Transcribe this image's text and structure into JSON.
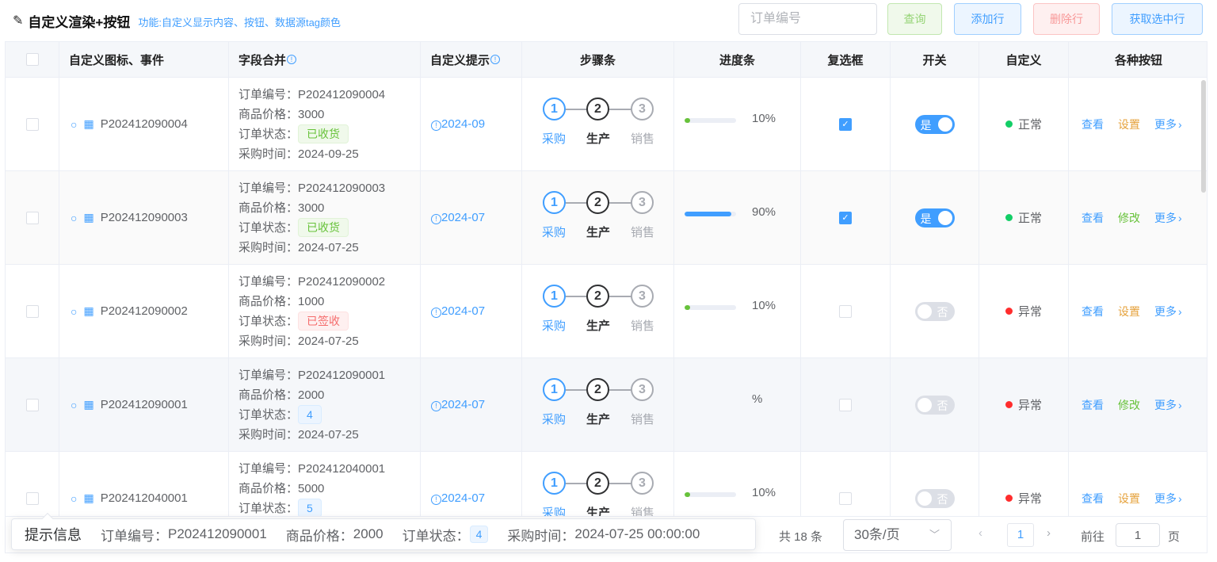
{
  "header": {
    "title": "自定义渲染+按钮",
    "subtitle": "功能:自定义显示内容、按钮、数据源tag颜色"
  },
  "toolbar": {
    "search_placeholder": "订单编号",
    "query": "查询",
    "add_row": "添加行",
    "delete_row": "删除行",
    "get_selected": "获取选中行"
  },
  "columns": [
    "自定义图标、事件",
    "字段合并",
    "自定义提示",
    "步骤条",
    "进度条",
    "复选框",
    "开关",
    "自定义",
    "各种按钮"
  ],
  "labels": {
    "order_no": "订单编号：",
    "price": "商品价格：",
    "status": "订单状态：",
    "time": "采购时间："
  },
  "steps": [
    {
      "num": "1",
      "label": "采购"
    },
    {
      "num": "2",
      "label": "生产"
    },
    {
      "num": "3",
      "label": "销售"
    }
  ],
  "colors": {
    "primary": "#409eff",
    "success": "#67c23a",
    "danger": "#f56c6c",
    "warning": "#e6a23c",
    "normal_dot": "#13ce66",
    "error_dot": "#ff2d2d"
  },
  "rows": [
    {
      "order": "P202412090004",
      "price": "3000",
      "status": {
        "text": "已收货",
        "type": "success"
      },
      "time": "2024-09-25",
      "tip": "2024-09",
      "progress": 10,
      "progress_text": "10%",
      "progress_color": "#67c23a",
      "checked": true,
      "switch_on": true,
      "switch_label": "是",
      "state": "正常",
      "state_type": "normal",
      "actions": [
        "查看",
        "设置",
        "更多"
      ],
      "action2_type": "warning"
    },
    {
      "order": "P202412090003",
      "price": "3000",
      "status": {
        "text": "已收货",
        "type": "success"
      },
      "time": "2024-07-25",
      "tip": "2024-07",
      "progress": 90,
      "progress_text": "90%",
      "progress_color": "#409eff",
      "checked": true,
      "switch_on": true,
      "switch_label": "是",
      "state": "正常",
      "state_type": "normal",
      "actions": [
        "查看",
        "修改",
        "更多"
      ],
      "action2_type": "success"
    },
    {
      "order": "P202412090002",
      "price": "1000",
      "status": {
        "text": "已签收",
        "type": "danger"
      },
      "time": "2024-07-25",
      "tip": "2024-07",
      "progress": 10,
      "progress_text": "10%",
      "progress_color": "#67c23a",
      "checked": false,
      "switch_on": false,
      "switch_label": "否",
      "state": "异常",
      "state_type": "error",
      "actions": [
        "查看",
        "设置",
        "更多"
      ],
      "action2_type": "warning"
    },
    {
      "order": "P202412090001",
      "price": "2000",
      "status": {
        "text": "4",
        "type": "primary"
      },
      "time": "2024-07-25",
      "tip": "2024-07",
      "progress_text": "%",
      "checked": false,
      "switch_on": false,
      "switch_label": "否",
      "state": "异常",
      "state_type": "error",
      "actions": [
        "查看",
        "修改",
        "更多"
      ],
      "action2_type": "success"
    },
    {
      "order": "P202412040001",
      "price": "5000",
      "status": {
        "text": "5",
        "type": "primary"
      },
      "tip": "2024-07",
      "progress": 10,
      "progress_text": "10%",
      "progress_color": "#67c23a",
      "checked": false,
      "switch_on": false,
      "switch_label": "否",
      "state": "异常",
      "state_type": "error",
      "actions": [
        "查看",
        "设置",
        "更多"
      ],
      "action2_type": "warning"
    }
  ],
  "tooltip": {
    "title": "提示信息",
    "order": "P202412090001",
    "price": "2000",
    "status": "4",
    "time": "2024-07-25 00:00:00"
  },
  "pagination": {
    "total": "共 18 条",
    "page_size": "30条/页",
    "current": "1",
    "goto_label": "前往",
    "goto_value": "1",
    "page_suffix": "页"
  }
}
